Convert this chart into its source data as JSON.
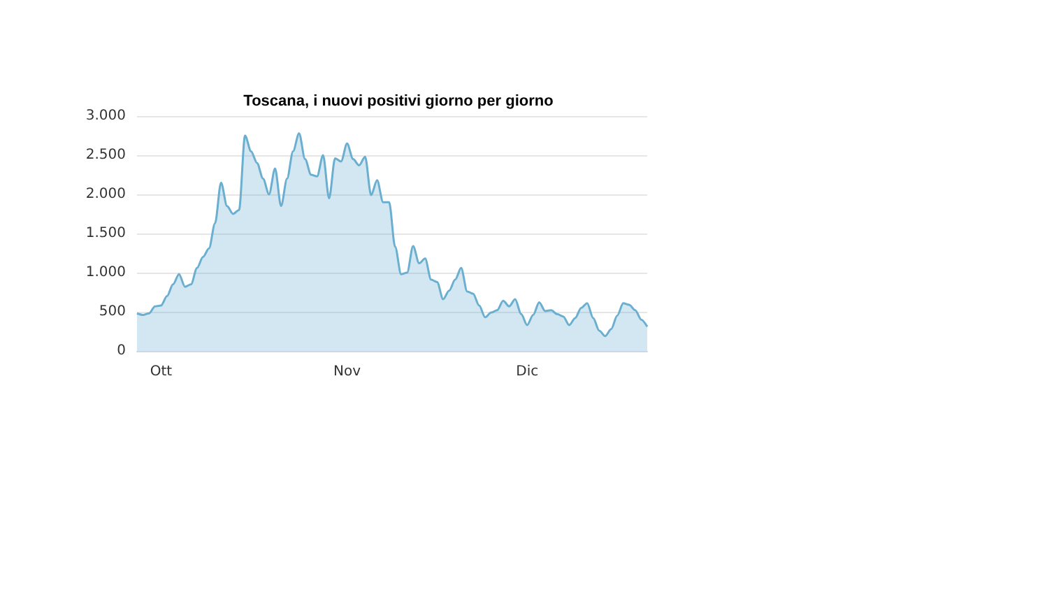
{
  "chart_data": {
    "type": "area",
    "title": "Toscana, i nuovi positivi giorno per giorno",
    "categories": [
      null,
      null,
      null,
      null,
      "Ott",
      null,
      null,
      null,
      null,
      null,
      null,
      null,
      null,
      null,
      null,
      null,
      null,
      null,
      null,
      null,
      null,
      null,
      null,
      null,
      null,
      null,
      null,
      null,
      null,
      null,
      null,
      null,
      null,
      null,
      null,
      "Nov",
      null,
      null,
      null,
      null,
      null,
      null,
      null,
      null,
      null,
      null,
      null,
      null,
      null,
      null,
      null,
      null,
      null,
      null,
      null,
      null,
      null,
      null,
      null,
      null,
      null,
      null,
      null,
      null,
      null,
      "Dic",
      null,
      null,
      null,
      null,
      null,
      null,
      null,
      null,
      null,
      null,
      null,
      null,
      null,
      null,
      null,
      null,
      null,
      null,
      null,
      null
    ],
    "series": [
      {
        "color": "#6aaed0",
        "values": [
          480,
          460,
          480,
          570,
          580,
          700,
          850,
          980,
          820,
          850,
          1060,
          1200,
          1310,
          1630,
          2150,
          1850,
          1750,
          1800,
          2750,
          2550,
          2400,
          2200,
          2000,
          2330,
          1850,
          2200,
          2550,
          2780,
          2450,
          2250,
          2230,
          2500,
          1950,
          2460,
          2420,
          2650,
          2450,
          2370,
          2480,
          1990,
          2180,
          1900,
          1900,
          1330,
          980,
          1000,
          1340,
          1120,
          1180,
          910,
          880,
          660,
          770,
          910,
          1060,
          760,
          730,
          580,
          430,
          490,
          520,
          640,
          570,
          660,
          470,
          330,
          460,
          620,
          510,
          520,
          470,
          440,
          330,
          420,
          550,
          610,
          420,
          260,
          190,
          280,
          450,
          610,
          590,
          520,
          400,
          310
        ]
      }
    ],
    "ylim": [
      0,
      3000
    ],
    "yticks": [
      0,
      {
        "value": 500,
        "label": "500"
      },
      {
        "value": 1000,
        "label": "1.000"
      },
      {
        "value": 1500,
        "label": "1.500"
      },
      {
        "value": 2000,
        "label": "2.000"
      },
      {
        "value": 2500,
        "label": "2.500"
      },
      {
        "value": 3000,
        "label": "3.000"
      }
    ],
    "grid": "y",
    "marker": "none",
    "line_style": "solid"
  }
}
